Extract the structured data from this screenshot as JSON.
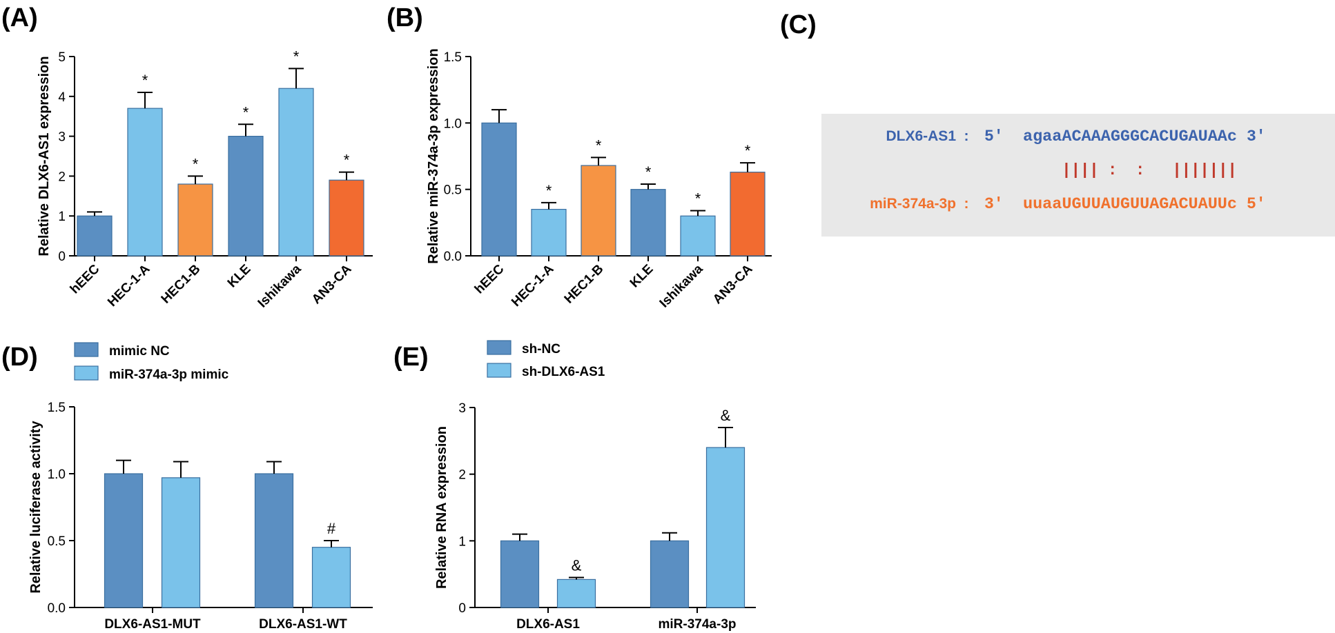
{
  "colors": {
    "dark_blue": "#5b8fc2",
    "light_blue": "#7ac2ea",
    "light_orange": "#f69444",
    "dark_orange": "#f26b30",
    "seq_blue": "#3c63ad",
    "seq_orange": "#f0712d",
    "pair_red": "#c0392b",
    "panel_bg": "#e8e8e8"
  },
  "panels": {
    "A": {
      "letter": "(A)"
    },
    "B": {
      "letter": "(B)"
    },
    "C": {
      "letter": "(C)"
    },
    "D": {
      "letter": "(D)"
    },
    "E": {
      "letter": "(E)"
    }
  },
  "chart_data": [
    {
      "id": "A",
      "type": "bar",
      "ylabel": "Relative DLX6-AS1 expression",
      "ylim": [
        0,
        5
      ],
      "yticks": [
        0,
        1,
        2,
        3,
        4,
        5
      ],
      "categories": [
        "hEEC",
        "HEC-1-A",
        "HEC1-B",
        "KLE",
        "Ishikawa",
        "AN3-CA"
      ],
      "values": [
        1.0,
        3.7,
        1.8,
        3.0,
        4.2,
        1.9
      ],
      "errors": [
        0.1,
        0.4,
        0.2,
        0.3,
        0.5,
        0.2
      ],
      "marks": [
        "",
        "*",
        "*",
        "*",
        "*",
        "*"
      ],
      "bar_colors": [
        "#5b8fc2",
        "#7ac2ea",
        "#f69444",
        "#5b8fc2",
        "#7ac2ea",
        "#f26b30"
      ]
    },
    {
      "id": "B",
      "type": "bar",
      "ylabel": "Relative miR-374a-3p expression",
      "ylim": [
        0,
        1.5
      ],
      "yticks": [
        0.0,
        0.5,
        1.0,
        1.5
      ],
      "ytick_labels": [
        "0.0",
        "0.5",
        "1.0",
        "1.5"
      ],
      "categories": [
        "hEEC",
        "HEC-1-A",
        "HEC1-B",
        "KLE",
        "Ishikawa",
        "AN3-CA"
      ],
      "values": [
        1.0,
        0.35,
        0.68,
        0.5,
        0.3,
        0.63
      ],
      "errors": [
        0.1,
        0.05,
        0.06,
        0.04,
        0.04,
        0.07
      ],
      "marks": [
        "",
        "*",
        "*",
        "*",
        "*",
        "*"
      ],
      "bar_colors": [
        "#5b8fc2",
        "#7ac2ea",
        "#f69444",
        "#5b8fc2",
        "#7ac2ea",
        "#f26b30"
      ]
    },
    {
      "id": "D",
      "type": "bar",
      "ylabel": "Relative luciferase activity",
      "ylim": [
        0,
        1.5
      ],
      "yticks": [
        0.0,
        0.5,
        1.0,
        1.5
      ],
      "ytick_labels": [
        "0.0",
        "0.5",
        "1.0",
        "1.5"
      ],
      "categories": [
        "DLX6-AS1-MUT",
        "DLX6-AS1-WT"
      ],
      "series": [
        {
          "name": "mimic NC",
          "color": "#5b8fc2",
          "values": [
            1.0,
            1.0
          ],
          "errors": [
            0.1,
            0.09
          ],
          "marks": [
            "",
            ""
          ]
        },
        {
          "name": "miR-374a-3p mimic",
          "color": "#7ac2ea",
          "values": [
            0.97,
            0.45
          ],
          "errors": [
            0.12,
            0.05
          ],
          "marks": [
            "",
            "#"
          ]
        }
      ]
    },
    {
      "id": "E",
      "type": "bar",
      "ylabel": "Relative RNA expression",
      "ylim": [
        0,
        3
      ],
      "yticks": [
        0,
        1,
        2,
        3
      ],
      "categories": [
        "DLX6-AS1",
        "miR-374a-3p"
      ],
      "series": [
        {
          "name": "sh-NC",
          "color": "#5b8fc2",
          "values": [
            1.0,
            1.0
          ],
          "errors": [
            0.1,
            0.12
          ],
          "marks": [
            "",
            ""
          ]
        },
        {
          "name": "sh-DLX6-AS1",
          "color": "#7ac2ea",
          "values": [
            0.42,
            2.4
          ],
          "errors": [
            0.03,
            0.3
          ],
          "marks": [
            "&",
            "&"
          ]
        }
      ]
    }
  ],
  "sequence": {
    "top_label": "DLX6-AS1",
    "top_colon": ":",
    "top_prime": "5'",
    "top_seq": "agaaACAAAGGGCACUGAUAAc",
    "top_end": "3'",
    "pairing": "|||| :  :   |||||||",
    "bottom_label": "miR-374a-3p",
    "bottom_colon": ":",
    "bottom_prime": "3'",
    "bottom_seq": "uuaaUGUUAUGUUAGACUAUUc",
    "bottom_end": "5'"
  }
}
